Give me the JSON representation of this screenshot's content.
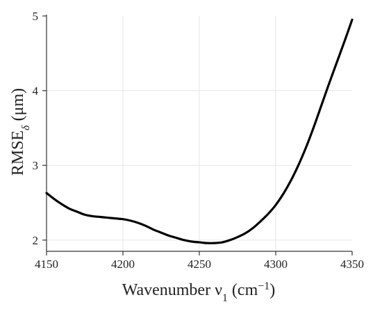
{
  "chart_data": {
    "type": "line",
    "xlabel": "Wavenumber ν",
    "xlabel_sub": "1",
    "xlabel_unit_open": " (cm",
    "xlabel_sup": "−1",
    "xlabel_unit_close": ")",
    "ylabel": "RMSE",
    "ylabel_sub": "δ",
    "ylabel_unit": " (μm)",
    "xlim": [
      4150,
      4350
    ],
    "ylim": [
      1.85,
      5.0
    ],
    "x_ticks": [
      4150,
      4200,
      4250,
      4300,
      4350
    ],
    "y_ticks": [
      2,
      3,
      4,
      5
    ],
    "grid": true,
    "line_color": "#000000",
    "series": [
      {
        "x": [
          4150,
          4155,
          4160,
          4165,
          4170,
          4175,
          4180,
          4185,
          4190,
          4195,
          4200,
          4205,
          4210,
          4215,
          4220,
          4225,
          4230,
          4235,
          4240,
          4245,
          4250,
          4255,
          4260,
          4265,
          4270,
          4275,
          4280,
          4285,
          4290,
          4295,
          4300,
          4305,
          4310,
          4315,
          4320,
          4325,
          4330,
          4335,
          4340,
          4345,
          4350
        ],
        "y": [
          2.63,
          2.55,
          2.48,
          2.42,
          2.38,
          2.34,
          2.32,
          2.31,
          2.3,
          2.29,
          2.28,
          2.26,
          2.23,
          2.19,
          2.14,
          2.1,
          2.06,
          2.03,
          2.0,
          1.98,
          1.97,
          1.96,
          1.96,
          1.97,
          2.0,
          2.04,
          2.09,
          2.16,
          2.25,
          2.35,
          2.47,
          2.62,
          2.8,
          3.01,
          3.25,
          3.52,
          3.81,
          4.1,
          4.38,
          4.66,
          4.95
        ]
      }
    ]
  }
}
